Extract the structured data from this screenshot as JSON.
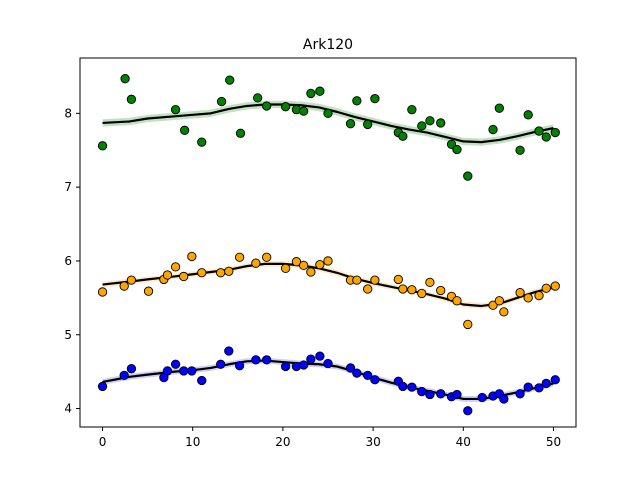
{
  "chart_data": {
    "type": "scatter",
    "title": "Ark120",
    "xlabel": "",
    "ylabel": "",
    "xlim": [
      -2.5,
      52.5
    ],
    "ylim": [
      3.75,
      8.75
    ],
    "xticks": [
      0,
      10,
      20,
      30,
      40,
      50
    ],
    "yticks": [
      4,
      5,
      6,
      7,
      8
    ],
    "grid": false,
    "series": [
      {
        "color": "#008000",
        "band_color": "#8fc98f",
        "points": [
          [
            0.0,
            7.56
          ],
          [
            2.5,
            8.47
          ],
          [
            3.2,
            8.19
          ],
          [
            8.1,
            8.05
          ],
          [
            9.1,
            7.77
          ],
          [
            11.0,
            7.61
          ],
          [
            13.2,
            8.16
          ],
          [
            14.1,
            8.45
          ],
          [
            15.3,
            7.73
          ],
          [
            17.2,
            8.21
          ],
          [
            18.2,
            8.1
          ],
          [
            20.3,
            8.09
          ],
          [
            21.5,
            8.05
          ],
          [
            22.3,
            8.03
          ],
          [
            23.1,
            8.27
          ],
          [
            24.1,
            8.3
          ],
          [
            25.0,
            8.0
          ],
          [
            27.5,
            7.86
          ],
          [
            28.2,
            8.17
          ],
          [
            29.4,
            7.85
          ],
          [
            30.2,
            8.2
          ],
          [
            32.8,
            7.74
          ],
          [
            33.3,
            7.69
          ],
          [
            34.3,
            8.05
          ],
          [
            35.4,
            7.83
          ],
          [
            36.3,
            7.9
          ],
          [
            37.5,
            7.87
          ],
          [
            38.7,
            7.58
          ],
          [
            39.3,
            7.51
          ],
          [
            40.5,
            7.15
          ],
          [
            43.3,
            7.78
          ],
          [
            44.0,
            8.07
          ],
          [
            46.3,
            7.5
          ],
          [
            47.2,
            7.98
          ],
          [
            48.4,
            7.76
          ],
          [
            49.2,
            7.68
          ],
          [
            50.2,
            7.74
          ]
        ],
        "fit": [
          [
            0,
            7.87
          ],
          [
            3,
            7.89
          ],
          [
            5,
            7.93
          ],
          [
            8,
            7.96
          ],
          [
            10,
            7.98
          ],
          [
            12,
            8.0
          ],
          [
            14,
            8.06
          ],
          [
            16,
            8.1
          ],
          [
            18,
            8.12
          ],
          [
            20,
            8.12
          ],
          [
            22,
            8.11
          ],
          [
            24,
            8.08
          ],
          [
            26,
            8.02
          ],
          [
            28,
            7.95
          ],
          [
            30,
            7.89
          ],
          [
            32,
            7.83
          ],
          [
            34,
            7.78
          ],
          [
            36,
            7.74
          ],
          [
            38,
            7.68
          ],
          [
            40,
            7.62
          ],
          [
            42,
            7.61
          ],
          [
            44,
            7.64
          ],
          [
            46,
            7.69
          ],
          [
            48,
            7.75
          ],
          [
            50,
            7.8
          ]
        ],
        "band_halfwidth": 0.05
      },
      {
        "color": "#ffa500",
        "band_color": "#ffd9a0",
        "points": [
          [
            0.0,
            5.58
          ],
          [
            2.4,
            5.66
          ],
          [
            3.2,
            5.74
          ],
          [
            5.1,
            5.59
          ],
          [
            6.8,
            5.75
          ],
          [
            7.2,
            5.81
          ],
          [
            8.1,
            5.92
          ],
          [
            9.0,
            5.79
          ],
          [
            9.9,
            6.06
          ],
          [
            11.0,
            5.84
          ],
          [
            13.1,
            5.84
          ],
          [
            14.0,
            5.86
          ],
          [
            15.2,
            6.05
          ],
          [
            17.0,
            5.97
          ],
          [
            18.2,
            6.05
          ],
          [
            20.3,
            5.9
          ],
          [
            21.5,
            5.99
          ],
          [
            22.3,
            5.94
          ],
          [
            23.1,
            5.85
          ],
          [
            24.1,
            5.95
          ],
          [
            25.0,
            6.0
          ],
          [
            27.5,
            5.74
          ],
          [
            28.2,
            5.74
          ],
          [
            29.4,
            5.62
          ],
          [
            30.2,
            5.74
          ],
          [
            32.8,
            5.75
          ],
          [
            33.3,
            5.62
          ],
          [
            34.3,
            5.61
          ],
          [
            35.4,
            5.56
          ],
          [
            36.3,
            5.71
          ],
          [
            37.5,
            5.6
          ],
          [
            38.7,
            5.52
          ],
          [
            39.3,
            5.46
          ],
          [
            40.5,
            5.14
          ],
          [
            43.3,
            5.4
          ],
          [
            44.0,
            5.46
          ],
          [
            44.5,
            5.31
          ],
          [
            46.3,
            5.57
          ],
          [
            47.2,
            5.5
          ],
          [
            48.4,
            5.53
          ],
          [
            49.2,
            5.63
          ],
          [
            50.2,
            5.66
          ]
        ],
        "fit": [
          [
            0,
            5.68
          ],
          [
            3,
            5.72
          ],
          [
            5,
            5.75
          ],
          [
            8,
            5.79
          ],
          [
            10,
            5.82
          ],
          [
            12,
            5.85
          ],
          [
            14,
            5.88
          ],
          [
            16,
            5.93
          ],
          [
            18,
            5.96
          ],
          [
            20,
            5.96
          ],
          [
            22,
            5.94
          ],
          [
            24,
            5.9
          ],
          [
            26,
            5.84
          ],
          [
            28,
            5.76
          ],
          [
            30,
            5.7
          ],
          [
            32,
            5.65
          ],
          [
            34,
            5.6
          ],
          [
            36,
            5.55
          ],
          [
            38,
            5.49
          ],
          [
            40,
            5.41
          ],
          [
            42,
            5.39
          ],
          [
            44,
            5.42
          ],
          [
            46,
            5.5
          ],
          [
            48,
            5.58
          ],
          [
            50,
            5.64
          ]
        ],
        "band_halfwidth": 0.04
      },
      {
        "color": "#0000ff",
        "band_color": "#a5a5f0",
        "points": [
          [
            0.0,
            4.3
          ],
          [
            2.4,
            4.45
          ],
          [
            3.2,
            4.54
          ],
          [
            6.8,
            4.42
          ],
          [
            7.2,
            4.51
          ],
          [
            8.1,
            4.6
          ],
          [
            9.0,
            4.51
          ],
          [
            9.9,
            4.51
          ],
          [
            11.0,
            4.38
          ],
          [
            13.1,
            4.6
          ],
          [
            14.0,
            4.78
          ],
          [
            15.2,
            4.58
          ],
          [
            17.0,
            4.66
          ],
          [
            18.2,
            4.66
          ],
          [
            20.3,
            4.57
          ],
          [
            21.5,
            4.57
          ],
          [
            22.3,
            4.59
          ],
          [
            23.1,
            4.67
          ],
          [
            24.1,
            4.71
          ],
          [
            25.0,
            4.61
          ],
          [
            27.5,
            4.55
          ],
          [
            28.2,
            4.48
          ],
          [
            29.4,
            4.45
          ],
          [
            30.2,
            4.39
          ],
          [
            32.8,
            4.37
          ],
          [
            33.3,
            4.3
          ],
          [
            34.3,
            4.29
          ],
          [
            35.4,
            4.23
          ],
          [
            36.3,
            4.19
          ],
          [
            37.5,
            4.2
          ],
          [
            38.7,
            4.16
          ],
          [
            39.3,
            4.19
          ],
          [
            40.5,
            3.97
          ],
          [
            42.1,
            4.15
          ],
          [
            43.3,
            4.17
          ],
          [
            44.0,
            4.2
          ],
          [
            44.5,
            4.13
          ],
          [
            46.3,
            4.2
          ],
          [
            47.2,
            4.29
          ],
          [
            48.4,
            4.28
          ],
          [
            49.2,
            4.34
          ],
          [
            50.2,
            4.39
          ]
        ],
        "fit": [
          [
            0,
            4.36
          ],
          [
            3,
            4.43
          ],
          [
            5,
            4.46
          ],
          [
            8,
            4.5
          ],
          [
            10,
            4.52
          ],
          [
            12,
            4.55
          ],
          [
            14,
            4.6
          ],
          [
            16,
            4.64
          ],
          [
            18,
            4.65
          ],
          [
            20,
            4.63
          ],
          [
            22,
            4.61
          ],
          [
            24,
            4.6
          ],
          [
            26,
            4.57
          ],
          [
            28,
            4.5
          ],
          [
            30,
            4.42
          ],
          [
            32,
            4.35
          ],
          [
            34,
            4.29
          ],
          [
            36,
            4.24
          ],
          [
            38,
            4.19
          ],
          [
            40,
            4.13
          ],
          [
            42,
            4.13
          ],
          [
            44,
            4.17
          ],
          [
            46,
            4.22
          ],
          [
            48,
            4.28
          ],
          [
            50,
            4.34
          ]
        ],
        "band_halfwidth": 0.04
      }
    ]
  }
}
